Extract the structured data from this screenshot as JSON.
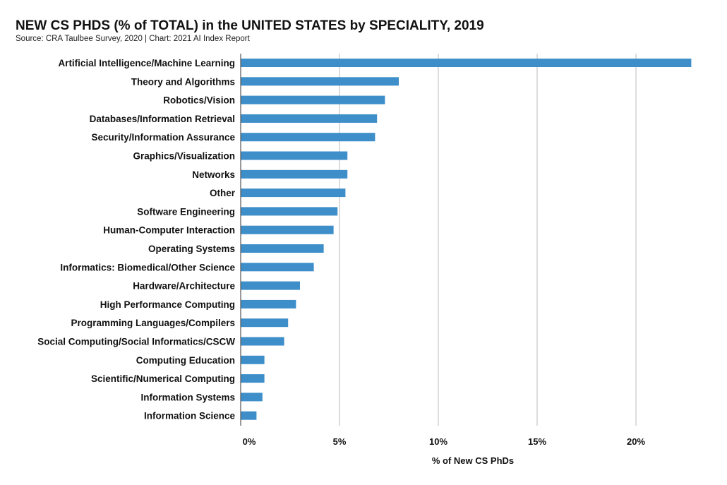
{
  "chart_data": {
    "type": "bar",
    "orientation": "horizontal",
    "title": "NEW CS PHDS (% of TOTAL) in the UNITED STATES by SPECIALITY, 2019",
    "subtitle": "Source: CRA Taulbee Survey, 2020 | Chart: 2021 AI Index Report",
    "xlabel": "% of New CS PhDs",
    "ylabel": "",
    "xlim": [
      0,
      23.5
    ],
    "xticks": [
      0,
      5,
      10,
      15,
      20
    ],
    "xtick_labels": [
      "0%",
      "5%",
      "10%",
      "15%",
      "20%"
    ],
    "grid": "vertical",
    "bar_color": "#3d8ec9",
    "categories": [
      "Artificial Intelligence/Machine Learning",
      "Theory and Algorithms",
      "Robotics/Vision",
      "Databases/Information Retrieval",
      "Security/Information Assurance",
      "Graphics/Visualization",
      "Networks",
      "Other",
      "Software Engineering",
      "Human-Computer Interaction",
      "Operating Systems",
      "Informatics: Biomedical/Other Science",
      "Hardware/Architecture",
      "High Performance Computing",
      "Programming Languages/Compilers",
      "Social Computing/Social Informatics/CSCW",
      "Computing Education",
      "Scientific/Numerical Computing",
      "Information Systems",
      "Information Science"
    ],
    "values": [
      22.8,
      8.0,
      7.3,
      6.9,
      6.8,
      5.4,
      5.4,
      5.3,
      4.9,
      4.7,
      4.2,
      3.7,
      3.0,
      2.8,
      2.4,
      2.2,
      1.2,
      1.2,
      1.1,
      0.8
    ]
  }
}
